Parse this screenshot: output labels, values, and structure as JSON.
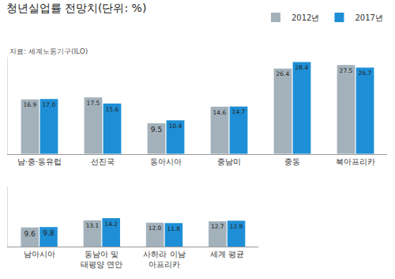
{
  "chart_data": {
    "type": "bar",
    "title": "청년실업률 전망치(단위: %)",
    "annotations": [
      "자료: 세계노동기구(ILO)"
    ],
    "categories": [
      "남·중·동유럽",
      "선진국",
      "동아시아",
      "중남미",
      "중동",
      "북아프리카",
      "남아시아",
      "동남아 및\n태평양 연안",
      "사하라 이남\n아프리카",
      "세계 평균"
    ],
    "series": [
      {
        "name": "2012년",
        "color": "#a3b1bb",
        "values": [
          16.9,
          17.5,
          9.5,
          14.6,
          26.4,
          27.5,
          9.6,
          13.1,
          12.0,
          12.7
        ],
        "value_labels": [
          "16.9",
          "17.5",
          "9.5",
          "14.6",
          "26.4",
          "27.5",
          "9.6",
          "13.1",
          "12.0",
          "12.7"
        ]
      },
      {
        "name": "2017년",
        "color": "#1e8fd6",
        "values": [
          17.0,
          15.6,
          10.4,
          14.7,
          28.4,
          26.7,
          9.8,
          14.2,
          11.8,
          12.9
        ],
        "value_labels": [
          "17.0",
          "15.6",
          "10.4",
          "14.7",
          "28.4",
          "26.7",
          "9.8",
          "14.2",
          "11.8",
          "12.9"
        ]
      }
    ],
    "ylim": [
      0,
      30
    ],
    "yticks": [],
    "grid": false,
    "legend": "top right",
    "data_labels": true,
    "tick_labels": "x"
  }
}
